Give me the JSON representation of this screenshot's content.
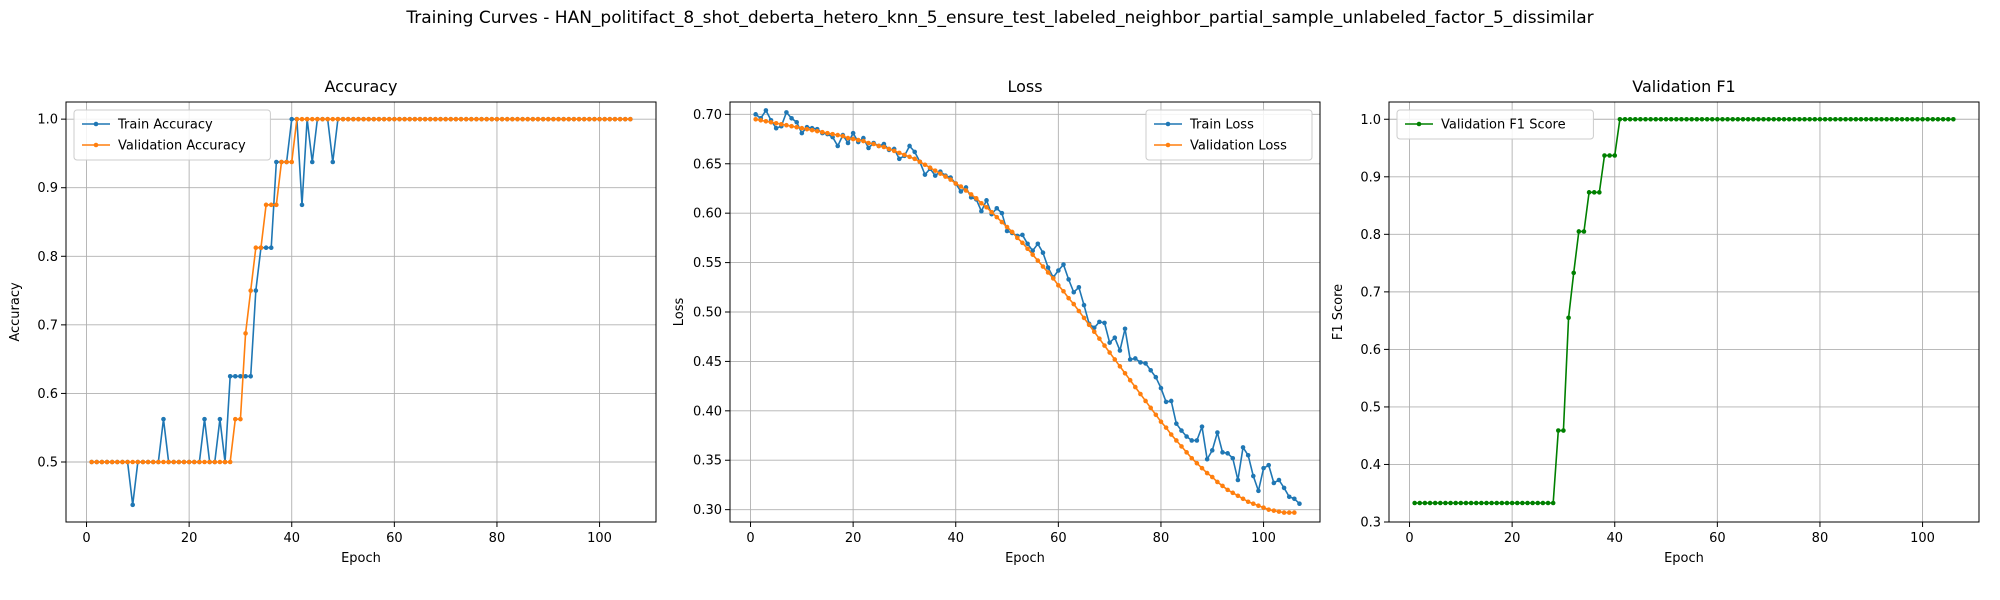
{
  "figure": {
    "title": "Training Curves - HAN_politifact_8_shot_deberta_hetero_knn_5_ensure_test_labeled_neighbor_partial_sample_unlabeled_factor_5_dissimilar"
  },
  "colors": {
    "blue": "#1f77b4",
    "orange": "#ff7f0e",
    "green": "#008000",
    "grid": "#b0b0b0"
  },
  "chart_data": [
    {
      "type": "line",
      "title": "Accuracy",
      "xlabel": "Epoch",
      "ylabel": "Accuracy",
      "xlim": [
        -4,
        111
      ],
      "ylim": [
        0.4125,
        1.025
      ],
      "xticks": [
        0,
        20,
        40,
        60,
        80,
        100
      ],
      "yticks": [
        0.5,
        0.6,
        0.7,
        0.8,
        0.9,
        1.0
      ],
      "ytick_labels": [
        "0.5",
        "0.6",
        "0.7",
        "0.8",
        "0.9",
        "1.0"
      ],
      "legend_position": "top-left",
      "grid": true,
      "series": [
        {
          "name": "Train Accuracy",
          "color": "#1f77b4",
          "values": [
            0.5,
            0.5,
            0.5,
            0.5,
            0.5,
            0.5,
            0.5,
            0.5,
            0.4375,
            0.5,
            0.5,
            0.5,
            0.5,
            0.5,
            0.5625,
            0.5,
            0.5,
            0.5,
            0.5,
            0.5,
            0.5,
            0.5,
            0.5625,
            0.5,
            0.5,
            0.5625,
            0.5,
            0.625,
            0.625,
            0.625,
            0.625,
            0.625,
            0.75,
            0.8125,
            0.8125,
            0.8125,
            0.9375,
            0.9375,
            0.9375,
            1.0,
            1.0,
            0.875,
            1.0,
            0.9375,
            1.0,
            1.0,
            1.0,
            0.9375,
            1.0,
            1.0,
            1.0,
            1.0,
            1.0,
            1.0,
            1.0,
            1.0,
            1.0,
            1.0,
            1.0,
            1.0,
            1.0,
            1.0,
            1.0,
            1.0,
            1.0,
            1.0,
            1.0,
            1.0,
            1.0,
            1.0,
            1.0,
            1.0,
            1.0,
            1.0,
            1.0,
            1.0,
            1.0,
            1.0,
            1.0,
            1.0,
            1.0,
            1.0,
            1.0,
            1.0,
            1.0,
            1.0,
            1.0,
            1.0,
            1.0,
            1.0,
            1.0,
            1.0,
            1.0,
            1.0,
            1.0,
            1.0,
            1.0,
            1.0,
            1.0,
            1.0,
            1.0,
            1.0,
            1.0,
            1.0,
            1.0,
            1.0
          ]
        },
        {
          "name": "Validation Accuracy",
          "color": "#ff7f0e",
          "values": [
            0.5,
            0.5,
            0.5,
            0.5,
            0.5,
            0.5,
            0.5,
            0.5,
            0.5,
            0.5,
            0.5,
            0.5,
            0.5,
            0.5,
            0.5,
            0.5,
            0.5,
            0.5,
            0.5,
            0.5,
            0.5,
            0.5,
            0.5,
            0.5,
            0.5,
            0.5,
            0.5,
            0.5,
            0.5625,
            0.5625,
            0.6875,
            0.75,
            0.8125,
            0.8125,
            0.875,
            0.875,
            0.875,
            0.9375,
            0.9375,
            0.9375,
            1.0,
            1.0,
            1.0,
            1.0,
            1.0,
            1.0,
            1.0,
            1.0,
            1.0,
            1.0,
            1.0,
            1.0,
            1.0,
            1.0,
            1.0,
            1.0,
            1.0,
            1.0,
            1.0,
            1.0,
            1.0,
            1.0,
            1.0,
            1.0,
            1.0,
            1.0,
            1.0,
            1.0,
            1.0,
            1.0,
            1.0,
            1.0,
            1.0,
            1.0,
            1.0,
            1.0,
            1.0,
            1.0,
            1.0,
            1.0,
            1.0,
            1.0,
            1.0,
            1.0,
            1.0,
            1.0,
            1.0,
            1.0,
            1.0,
            1.0,
            1.0,
            1.0,
            1.0,
            1.0,
            1.0,
            1.0,
            1.0,
            1.0,
            1.0,
            1.0,
            1.0,
            1.0,
            1.0,
            1.0,
            1.0,
            1.0
          ]
        }
      ]
    },
    {
      "type": "line",
      "title": "Loss",
      "xlabel": "Epoch",
      "ylabel": "Loss",
      "xlim": [
        -4,
        111
      ],
      "ylim": [
        0.2875,
        0.7125
      ],
      "xticks": [
        0,
        20,
        40,
        60,
        80,
        100
      ],
      "yticks": [
        0.3,
        0.35,
        0.4,
        0.45,
        0.5,
        0.55,
        0.6,
        0.65,
        0.7
      ],
      "ytick_labels": [
        "0.30",
        "0.35",
        "0.40",
        "0.45",
        "0.50",
        "0.55",
        "0.60",
        "0.65",
        "0.70"
      ],
      "legend_position": "top-right",
      "grid": true,
      "series": [
        {
          "name": "Train Loss",
          "color": "#1f77b4",
          "values": [
            0.7,
            0.696,
            0.704,
            0.694,
            0.686,
            0.688,
            0.702,
            0.696,
            0.692,
            0.681,
            0.687,
            0.686,
            0.685,
            0.681,
            0.68,
            0.677,
            0.668,
            0.679,
            0.671,
            0.681,
            0.672,
            0.676,
            0.666,
            0.671,
            0.668,
            0.67,
            0.664,
            0.665,
            0.655,
            0.658,
            0.668,
            0.662,
            0.652,
            0.639,
            0.645,
            0.638,
            0.642,
            0.638,
            0.636,
            0.63,
            0.622,
            0.626,
            0.616,
            0.614,
            0.602,
            0.613,
            0.599,
            0.605,
            0.6,
            0.582,
            0.58,
            0.577,
            0.578,
            0.569,
            0.562,
            0.569,
            0.56,
            0.545,
            0.535,
            0.542,
            0.548,
            0.533,
            0.52,
            0.525,
            0.507,
            0.488,
            0.484,
            0.49,
            0.489,
            0.469,
            0.474,
            0.461,
            0.483,
            0.452,
            0.453,
            0.449,
            0.448,
            0.441,
            0.434,
            0.423,
            0.409,
            0.41,
            0.387,
            0.38,
            0.374,
            0.37,
            0.37,
            0.384,
            0.351,
            0.36,
            0.378,
            0.358,
            0.357,
            0.352,
            0.33,
            0.363,
            0.355,
            0.334,
            0.319,
            0.342,
            0.345,
            0.327,
            0.33,
            0.322,
            0.313,
            0.311,
            0.306
          ],
          "x_start": 1
        },
        {
          "name": "Validation Loss",
          "color": "#ff7f0e",
          "values": [
            0.695,
            0.694,
            0.693,
            0.692,
            0.691,
            0.69,
            0.689,
            0.688,
            0.687,
            0.686,
            0.685,
            0.684,
            0.683,
            0.682,
            0.681,
            0.68,
            0.679,
            0.678,
            0.676,
            0.675,
            0.674,
            0.673,
            0.671,
            0.67,
            0.668,
            0.667,
            0.665,
            0.663,
            0.661,
            0.659,
            0.657,
            0.655,
            0.652,
            0.649,
            0.646,
            0.643,
            0.64,
            0.637,
            0.634,
            0.63,
            0.627,
            0.623,
            0.619,
            0.615,
            0.61,
            0.606,
            0.601,
            0.596,
            0.591,
            0.586,
            0.581,
            0.575,
            0.57,
            0.564,
            0.558,
            0.552,
            0.546,
            0.54,
            0.534,
            0.527,
            0.521,
            0.514,
            0.508,
            0.501,
            0.494,
            0.487,
            0.48,
            0.473,
            0.466,
            0.459,
            0.452,
            0.445,
            0.438,
            0.431,
            0.424,
            0.417,
            0.41,
            0.403,
            0.396,
            0.389,
            0.383,
            0.376,
            0.37,
            0.364,
            0.358,
            0.352,
            0.347,
            0.342,
            0.337,
            0.333,
            0.328,
            0.324,
            0.32,
            0.317,
            0.314,
            0.311,
            0.308,
            0.306,
            0.304,
            0.302,
            0.3,
            0.299,
            0.298,
            0.297,
            0.297,
            0.297
          ]
        }
      ]
    },
    {
      "type": "line",
      "title": "Validation F1",
      "xlabel": "Epoch",
      "ylabel": "F1 Score",
      "xlim": [
        -4,
        111
      ],
      "ylim": [
        0.3,
        1.03
      ],
      "xticks": [
        0,
        20,
        40,
        60,
        80,
        100
      ],
      "yticks": [
        0.3,
        0.4,
        0.5,
        0.6,
        0.7,
        0.8,
        0.9,
        1.0
      ],
      "ytick_labels": [
        "0.3",
        "0.4",
        "0.5",
        "0.6",
        "0.7",
        "0.8",
        "0.9",
        "1.0"
      ],
      "legend_position": "top-left",
      "grid": true,
      "series": [
        {
          "name": "Validation F1 Score",
          "color": "#008000",
          "values": [
            0.333,
            0.333,
            0.333,
            0.333,
            0.333,
            0.333,
            0.333,
            0.333,
            0.333,
            0.333,
            0.333,
            0.333,
            0.333,
            0.333,
            0.333,
            0.333,
            0.333,
            0.333,
            0.333,
            0.333,
            0.333,
            0.333,
            0.333,
            0.333,
            0.333,
            0.333,
            0.333,
            0.333,
            0.459,
            0.459,
            0.655,
            0.733,
            0.805,
            0.805,
            0.873,
            0.873,
            0.873,
            0.937,
            0.937,
            0.937,
            1.0,
            1.0,
            1.0,
            1.0,
            1.0,
            1.0,
            1.0,
            1.0,
            1.0,
            1.0,
            1.0,
            1.0,
            1.0,
            1.0,
            1.0,
            1.0,
            1.0,
            1.0,
            1.0,
            1.0,
            1.0,
            1.0,
            1.0,
            1.0,
            1.0,
            1.0,
            1.0,
            1.0,
            1.0,
            1.0,
            1.0,
            1.0,
            1.0,
            1.0,
            1.0,
            1.0,
            1.0,
            1.0,
            1.0,
            1.0,
            1.0,
            1.0,
            1.0,
            1.0,
            1.0,
            1.0,
            1.0,
            1.0,
            1.0,
            1.0,
            1.0,
            1.0,
            1.0,
            1.0,
            1.0,
            1.0,
            1.0,
            1.0,
            1.0,
            1.0,
            1.0,
            1.0,
            1.0,
            1.0,
            1.0,
            1.0
          ]
        }
      ]
    }
  ]
}
